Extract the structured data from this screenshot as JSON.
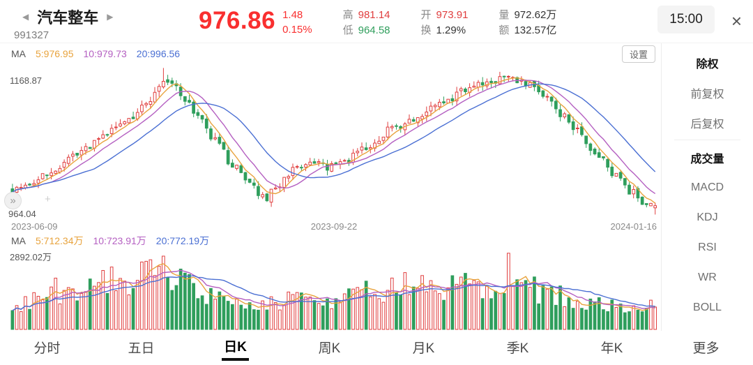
{
  "header": {
    "prev_icon": "◀",
    "next_icon": "▶",
    "title": "汽车整车",
    "code": "991327",
    "price": "976.86",
    "change": "1.48",
    "change_pct": "0.15%",
    "stats": {
      "high_label": "高",
      "high": "981.14",
      "low_label": "低",
      "low": "964.58",
      "open_label": "开",
      "open": "973.91",
      "turnover_label": "换",
      "turnover": "1.29%",
      "volume_label": "量",
      "volume": "972.62万",
      "amount_label": "额",
      "amount": "132.57亿"
    },
    "time": "15:00",
    "close_icon": "×"
  },
  "price_chart": {
    "ma_prefix": "MA",
    "ma5_label": "5:976.95",
    "ma10_label": "10:979.73",
    "ma20_label": "20:996.56",
    "settings_label": "设置",
    "expand_icon": "»",
    "crosshair_icon": "+",
    "y_max_label": "1168.87",
    "y_min_label": "964.04"
  },
  "volume_chart": {
    "ma_prefix": "MA",
    "ma5_label": "5:712.34万",
    "ma10_label": "10:723.91万",
    "ma20_label": "20:772.19万",
    "y_max_label": "2892.02万"
  },
  "sidebar": {
    "items": [
      {
        "label": "除权",
        "active": true
      },
      {
        "label": "前复权",
        "active": false
      },
      {
        "label": "后复权",
        "active": false
      },
      {
        "label": "成交量",
        "active": true
      },
      {
        "label": "MACD",
        "active": false
      },
      {
        "label": "KDJ",
        "active": false
      },
      {
        "label": "RSI",
        "active": false
      },
      {
        "label": "WR",
        "active": false
      },
      {
        "label": "BOLL",
        "active": false
      }
    ]
  },
  "tabs": [
    {
      "label": "分时",
      "active": false
    },
    {
      "label": "五日",
      "active": false
    },
    {
      "label": "日K",
      "active": true
    },
    {
      "label": "周K",
      "active": false
    },
    {
      "label": "月K",
      "active": false
    },
    {
      "label": "季K",
      "active": false
    },
    {
      "label": "年K",
      "active": false
    },
    {
      "label": "更多",
      "active": false
    }
  ],
  "colors": {
    "up": "#e03e3e",
    "down": "#2f9e5c",
    "ma5": "#e8a33d",
    "ma10": "#b45fc1",
    "ma20": "#4a6fd3",
    "price_red": "#f92f2f"
  },
  "chart_data": {
    "type": "candlestick_with_volume",
    "title": "汽车整车 991327 日K",
    "x_labels": [
      "2023-06-09",
      "2023-09-22",
      "2024-01-16"
    ],
    "y_max": 1168.87,
    "y_min": 964.04,
    "volume_max": 2892.02,
    "volume_unit": "万",
    "num_candles": 150,
    "seed": 7,
    "last_candle": {
      "open": 973.91,
      "high": 981.14,
      "low": 964.58,
      "close": 976.86
    },
    "peak_index": 35,
    "peak_high": 1167.5,
    "volume_spike_index": 115,
    "volume_spike_value": 2870,
    "price_keypoints": [
      [
        0,
        1002
      ],
      [
        6,
        1012
      ],
      [
        14,
        1042
      ],
      [
        22,
        1075
      ],
      [
        30,
        1112
      ],
      [
        35,
        1150
      ],
      [
        38,
        1140
      ],
      [
        44,
        1092
      ],
      [
        50,
        1040
      ],
      [
        56,
        1000
      ],
      [
        59,
        988
      ],
      [
        64,
        1022
      ],
      [
        69,
        1038
      ],
      [
        73,
        1026
      ],
      [
        78,
        1042
      ],
      [
        84,
        1068
      ],
      [
        90,
        1090
      ],
      [
        96,
        1106
      ],
      [
        103,
        1130
      ],
      [
        110,
        1146
      ],
      [
        114,
        1156
      ],
      [
        118,
        1148
      ],
      [
        123,
        1132
      ],
      [
        128,
        1100
      ],
      [
        133,
        1064
      ],
      [
        138,
        1030
      ],
      [
        142,
        1002
      ],
      [
        146,
        984
      ],
      [
        149,
        977
      ]
    ],
    "volume_keypoints": [
      [
        0,
        700
      ],
      [
        6,
        1150
      ],
      [
        10,
        1500
      ],
      [
        14,
        1150
      ],
      [
        20,
        1600
      ],
      [
        26,
        1900
      ],
      [
        30,
        2100
      ],
      [
        34,
        2300
      ],
      [
        38,
        1800
      ],
      [
        44,
        1300
      ],
      [
        50,
        1000
      ],
      [
        56,
        850
      ],
      [
        60,
        950
      ],
      [
        66,
        1250
      ],
      [
        72,
        1100
      ],
      [
        78,
        1250
      ],
      [
        84,
        1500
      ],
      [
        90,
        1700
      ],
      [
        96,
        1600
      ],
      [
        102,
        1700
      ],
      [
        108,
        1500
      ],
      [
        112,
        1650
      ],
      [
        115,
        2100
      ],
      [
        117,
        1900
      ],
      [
        122,
        1400
      ],
      [
        128,
        1200
      ],
      [
        134,
        1000
      ],
      [
        140,
        850
      ],
      [
        145,
        780
      ],
      [
        149,
        1000
      ]
    ],
    "ma_values_price": {
      "ma5": 976.95,
      "ma10": 979.73,
      "ma20": 996.56
    },
    "ma_values_volume": {
      "ma5": 712.34,
      "ma10": 723.91,
      "ma20": 772.19
    }
  }
}
